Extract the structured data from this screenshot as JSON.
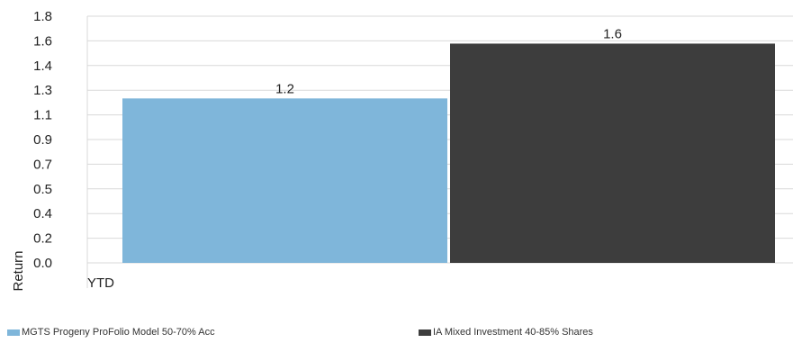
{
  "chart_data": {
    "type": "bar",
    "categories": [
      "YTD"
    ],
    "series": [
      {
        "name": "MGTS Progeny ProFolio Model 50-70% Acc",
        "values": [
          1.2
        ],
        "color": "#7fb6da"
      },
      {
        "name": "IA Mixed Investment 40-85% Shares",
        "values": [
          1.6
        ],
        "color": "#3d3d3d"
      }
    ],
    "data_labels": [
      "1.2",
      "1.6"
    ],
    "y_ticks": [
      "0.0",
      "0.2",
      "0.4",
      "0.5",
      "0.7",
      "0.9",
      "1.1",
      "1.3",
      "1.4",
      "1.6",
      "1.8"
    ],
    "ylim": [
      0,
      1.8
    ],
    "ylabel": "Return",
    "xlabel": "",
    "grid": true,
    "legend_position": "bottom"
  }
}
